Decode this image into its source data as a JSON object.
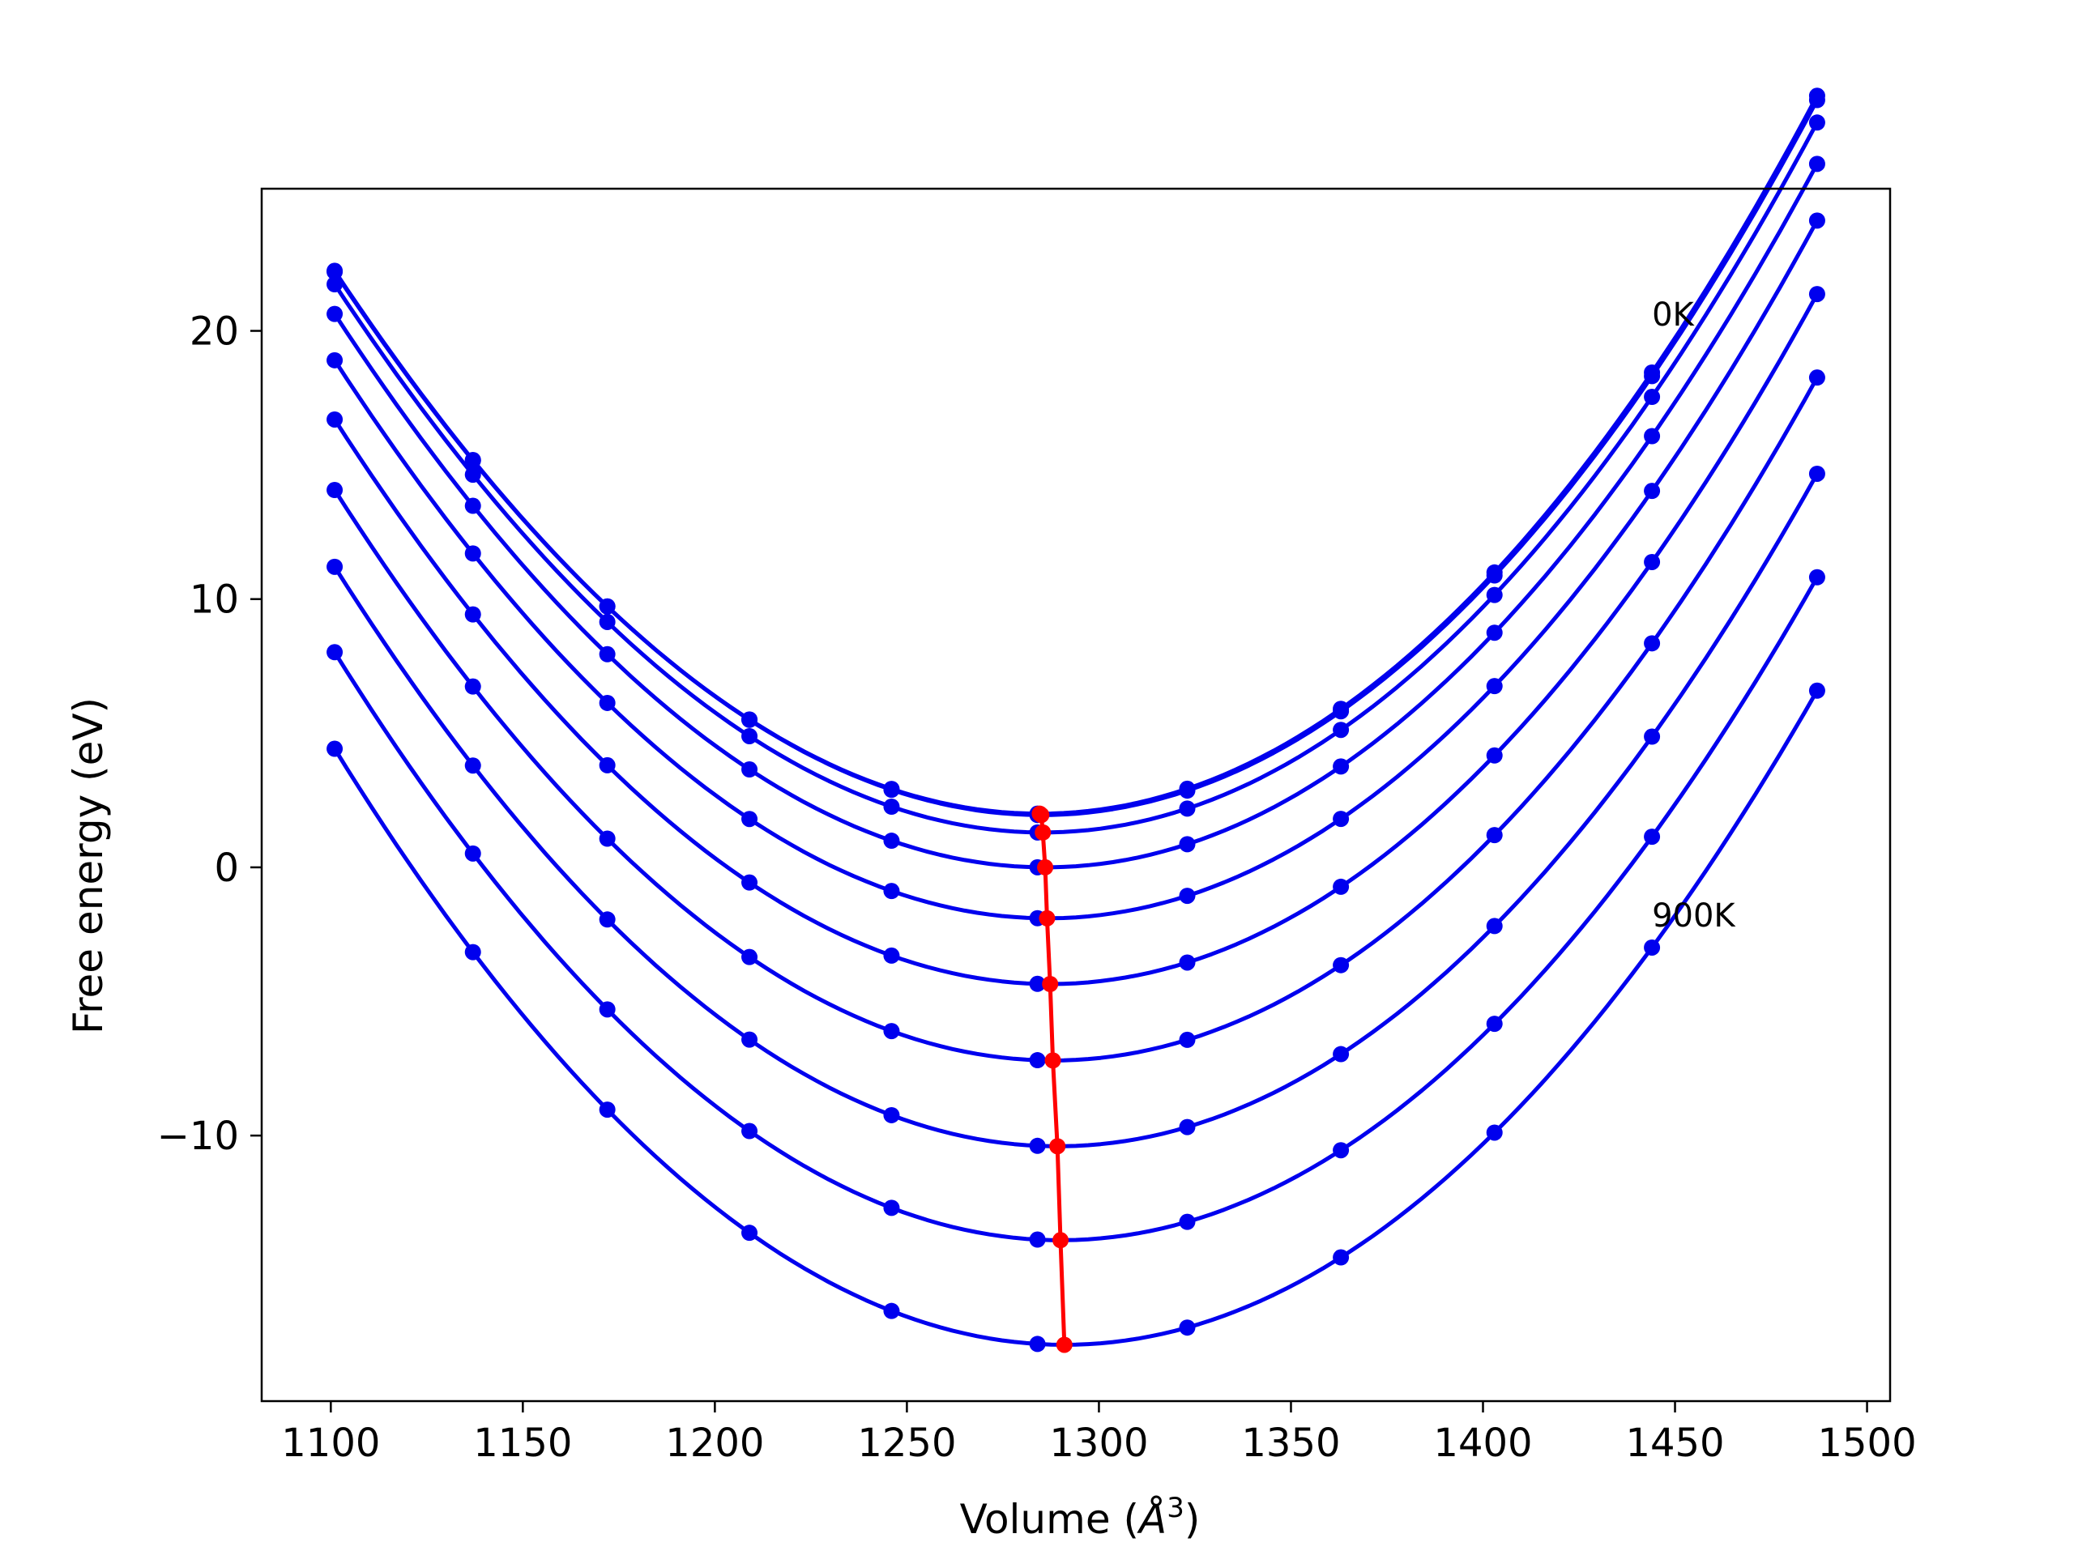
{
  "chart_data": {
    "type": "line",
    "title": "",
    "xlabel_prefix": "Volume (",
    "xlabel_unit": "Å",
    "xlabel_sup": "3",
    "xlabel_suffix": ")",
    "ylabel": "Free energy (eV)",
    "xlim": [
      1082,
      1506
    ],
    "ylim": [
      -19.9,
      25.3
    ],
    "xticks": [
      1100,
      1150,
      1200,
      1250,
      1300,
      1350,
      1400,
      1450,
      1500
    ],
    "yticks": [
      -10,
      0,
      10,
      20
    ],
    "ytick_labels": [
      "−10",
      "0",
      "10",
      "20"
    ],
    "grid": false,
    "annotations": [
      {
        "text": "0K",
        "x": 1444,
        "y": 20.2
      },
      {
        "text": "900K",
        "x": 1444,
        "y": -2.2
      }
    ],
    "sample_volumes": [
      1101,
      1137,
      1172,
      1209,
      1246,
      1284,
      1323,
      1363,
      1403,
      1444,
      1487
    ],
    "series_color": "#0000ee",
    "equilibrium_color": "#ff0000",
    "series": [
      {
        "v0": 1284.6,
        "f0": 2.0,
        "a": 0.000625,
        "b": 1.4e-07
      },
      {
        "v0": 1285.0,
        "f0": 1.95,
        "a": 0.000625,
        "b": 1.4e-07
      },
      {
        "v0": 1285.4,
        "f0": 1.3,
        "a": 0.000625,
        "b": 1.3e-07
      },
      {
        "v0": 1286.0,
        "f0": 0.0,
        "a": 0.000625,
        "b": 1.2e-07
      },
      {
        "v0": 1286.5,
        "f0": -1.9,
        "a": 0.000625,
        "b": 1.1e-07
      },
      {
        "v0": 1287.3,
        "f0": -4.35,
        "a": 0.000625,
        "b": 1e-07
      },
      {
        "v0": 1288.0,
        "f0": -7.2,
        "a": 0.000625,
        "b": 9e-08
      },
      {
        "v0": 1289.2,
        "f0": -10.4,
        "a": 0.000625,
        "b": 8e-08
      },
      {
        "v0": 1290.0,
        "f0": -13.9,
        "a": 0.000625,
        "b": 6e-08
      },
      {
        "v0": 1291.0,
        "f0": -17.8,
        "a": 0.000625,
        "b": 5e-08
      }
    ],
    "equilibrium": {
      "volumes": [
        1284.6,
        1285.0,
        1285.4,
        1286.0,
        1286.5,
        1287.3,
        1288.0,
        1289.2,
        1290.0,
        1291.0
      ],
      "energies": [
        2.0,
        1.95,
        1.3,
        0.0,
        -1.9,
        -4.35,
        -7.2,
        -10.4,
        -13.9,
        -17.8
      ]
    }
  }
}
